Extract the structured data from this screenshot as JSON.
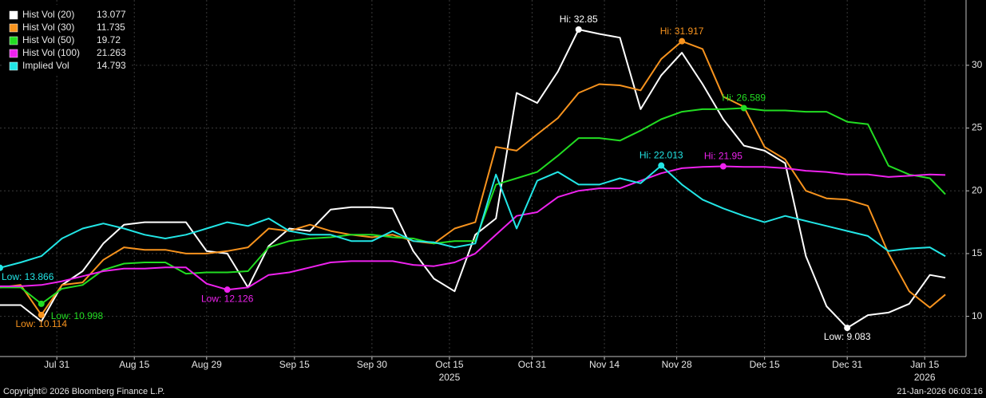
{
  "chart_data": {
    "type": "line",
    "x": [
      "2025-07-20",
      "2025-07-24",
      "2025-07-28",
      "2025-08-01",
      "2025-08-05",
      "2025-08-09",
      "2025-08-13",
      "2025-08-17",
      "2025-08-21",
      "2025-08-25",
      "2025-08-29",
      "2025-09-02",
      "2025-09-06",
      "2025-09-10",
      "2025-09-14",
      "2025-09-18",
      "2025-09-22",
      "2025-09-26",
      "2025-09-30",
      "2025-10-04",
      "2025-10-08",
      "2025-10-12",
      "2025-10-16",
      "2025-10-20",
      "2025-10-24",
      "2025-10-28",
      "2025-11-01",
      "2025-11-05",
      "2025-11-09",
      "2025-11-13",
      "2025-11-17",
      "2025-11-21",
      "2025-11-25",
      "2025-11-29",
      "2025-12-03",
      "2025-12-07",
      "2025-12-11",
      "2025-12-15",
      "2025-12-19",
      "2025-12-23",
      "2025-12-27",
      "2025-12-31",
      "2026-01-04",
      "2026-01-08",
      "2026-01-12",
      "2026-01-16",
      "2026-01-19"
    ],
    "series": [
      {
        "name": "Hist Vol (20)",
        "color": "#ffffff",
        "values": [
          10.9,
          10.9,
          9.6,
          12.5,
          13.6,
          15.8,
          17.3,
          17.5,
          17.5,
          17.5,
          15.2,
          15.0,
          12.3,
          15.6,
          17.0,
          16.8,
          18.5,
          18.7,
          18.7,
          18.6,
          15.2,
          13.0,
          12.0,
          16.5,
          17.8,
          27.8,
          27.0,
          29.5,
          32.85,
          32.5,
          32.2,
          26.5,
          29.2,
          31.0,
          28.5,
          25.7,
          23.6,
          23.2,
          22.2,
          14.8,
          10.8,
          9.083,
          10.1,
          10.3,
          11.0,
          13.3,
          13.077
        ]
      },
      {
        "name": "Hist Vol (30)",
        "color": "#f7931e",
        "values": [
          12.3,
          12.5,
          10.114,
          12.5,
          12.7,
          14.5,
          15.5,
          15.3,
          15.3,
          15.0,
          15.0,
          15.2,
          15.5,
          17.0,
          16.8,
          17.3,
          16.8,
          16.5,
          16.3,
          16.5,
          16.0,
          15.8,
          17.0,
          17.5,
          23.5,
          23.2,
          24.5,
          25.8,
          27.8,
          28.5,
          28.4,
          28.0,
          30.5,
          31.917,
          31.3,
          27.5,
          26.7,
          23.5,
          22.5,
          20.0,
          19.4,
          19.3,
          18.8,
          15.0,
          12.0,
          10.7,
          11.735
        ]
      },
      {
        "name": "Hist Vol (50)",
        "color": "#22dd22",
        "values": [
          12.3,
          12.3,
          10.998,
          12.2,
          12.5,
          13.7,
          14.2,
          14.3,
          14.3,
          13.4,
          13.5,
          13.5,
          13.6,
          15.5,
          16.0,
          16.2,
          16.3,
          16.5,
          16.5,
          16.3,
          16.2,
          15.8,
          16.0,
          16.0,
          20.5,
          21.0,
          21.5,
          22.8,
          24.2,
          24.2,
          24.0,
          24.8,
          25.7,
          26.3,
          26.5,
          26.5,
          26.589,
          26.4,
          26.4,
          26.3,
          26.3,
          25.5,
          25.3,
          22.0,
          21.3,
          21.0,
          19.72
        ]
      },
      {
        "name": "Hist Vol (100)",
        "color": "#ee22ee",
        "values": [
          12.4,
          12.4,
          12.5,
          12.8,
          13.2,
          13.6,
          13.8,
          13.8,
          13.9,
          13.9,
          12.6,
          12.126,
          12.3,
          13.3,
          13.5,
          13.9,
          14.3,
          14.4,
          14.4,
          14.4,
          14.1,
          14.0,
          14.3,
          15.0,
          16.5,
          18.0,
          18.3,
          19.5,
          20.0,
          20.2,
          20.2,
          20.8,
          21.4,
          21.8,
          21.9,
          21.95,
          21.9,
          21.9,
          21.8,
          21.6,
          21.5,
          21.3,
          21.3,
          21.1,
          21.2,
          21.3,
          21.263
        ]
      },
      {
        "name": "Implied Vol",
        "color": "#22e6e6",
        "values": [
          13.866,
          14.3,
          14.8,
          16.2,
          17.0,
          17.4,
          17.0,
          16.5,
          16.2,
          16.5,
          17.0,
          17.5,
          17.2,
          17.8,
          16.8,
          16.5,
          16.5,
          16.0,
          16.0,
          16.8,
          16.0,
          15.9,
          15.5,
          15.8,
          21.3,
          17.0,
          20.8,
          21.5,
          20.5,
          20.5,
          21.0,
          20.6,
          22.013,
          20.5,
          19.3,
          18.6,
          18.0,
          17.5,
          18.0,
          17.6,
          17.2,
          16.8,
          16.4,
          15.2,
          15.4,
          15.5,
          14.793
        ]
      }
    ],
    "xlim": [
      "2025-07-20",
      "2026-01-23"
    ],
    "xticks": [
      {
        "value": "2025-07-31",
        "label": "Jul 31"
      },
      {
        "value": "2025-08-15",
        "label": "Aug 15"
      },
      {
        "value": "2025-08-29",
        "label": "Aug 29"
      },
      {
        "value": "2025-09-15",
        "label": "Sep 15"
      },
      {
        "value": "2025-09-30",
        "label": "Sep 30"
      },
      {
        "value": "2025-10-15",
        "label": "Oct 15"
      },
      {
        "value": "2025-10-31",
        "label": "Oct 31"
      },
      {
        "value": "2025-11-14",
        "label": "Nov 14"
      },
      {
        "value": "2025-11-28",
        "label": "Nov 28"
      },
      {
        "value": "2025-12-15",
        "label": "Dec 15"
      },
      {
        "value": "2025-12-31",
        "label": "Dec 31"
      },
      {
        "value": "2026-01-15",
        "label": "Jan 15"
      }
    ],
    "year_labels": [
      {
        "value": "2025-10-15",
        "label": "2025"
      },
      {
        "value": "2026-01-15",
        "label": "2026"
      }
    ],
    "ylim": [
      6.8,
      35.2
    ],
    "yticks": [
      10,
      15,
      20,
      25,
      30
    ],
    "grid": true,
    "legend": "top-left",
    "annotations": [
      {
        "series": 0,
        "index": 28,
        "label": "Hi: 32.85"
      },
      {
        "series": 0,
        "index": 41,
        "label": "Low: 9.083"
      },
      {
        "series": 1,
        "index": 33,
        "label": "Hi: 31.917"
      },
      {
        "series": 1,
        "index": 2,
        "label": "Low: 10.114"
      },
      {
        "series": 2,
        "index": 36,
        "label": "Hi: 26.589"
      },
      {
        "series": 2,
        "index": 2,
        "label": "Low: 10.998"
      },
      {
        "series": 3,
        "index": 35,
        "label": "Hi: 21.95"
      },
      {
        "series": 3,
        "index": 11,
        "label": "Low: 12.126"
      },
      {
        "series": 4,
        "index": 32,
        "label": "Hi: 22.013"
      },
      {
        "series": 4,
        "index": 0,
        "label": "Low: 13.866"
      }
    ],
    "footer_left": "Copyright© 2026 Bloomberg Finance L.P.",
    "footer_right": "21-Jan-2026 06:03:16"
  }
}
